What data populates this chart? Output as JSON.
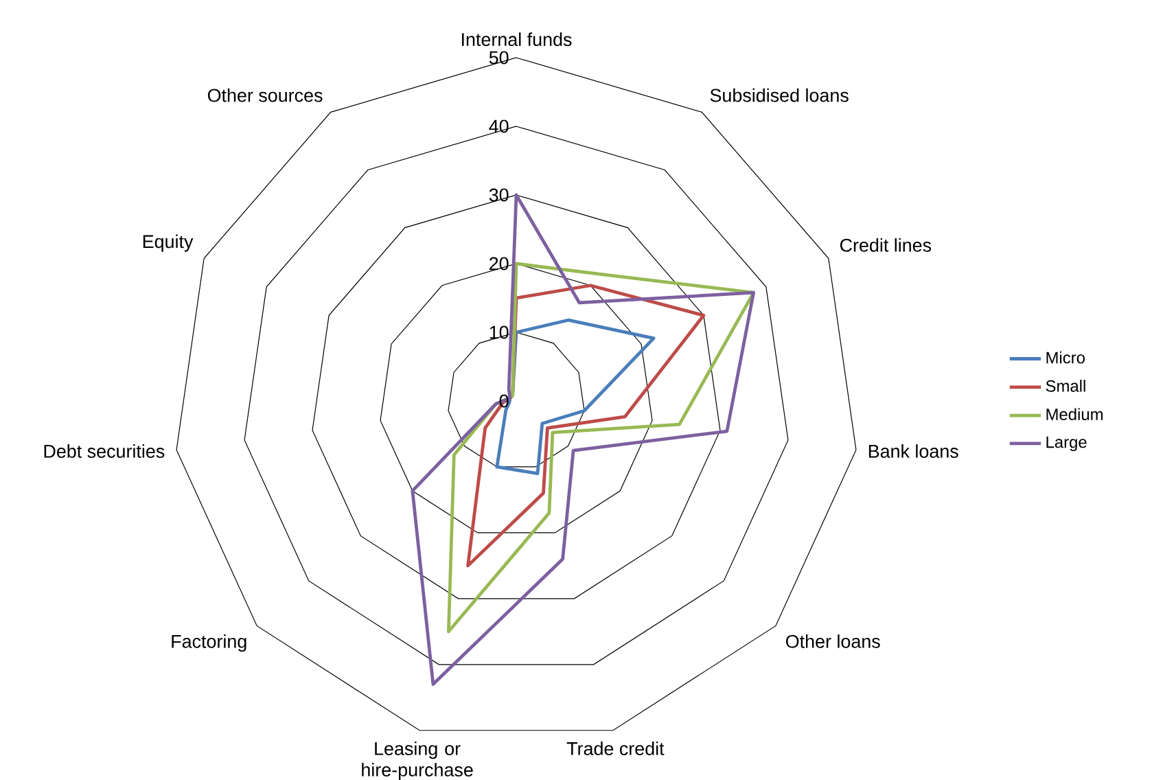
{
  "chart_data": {
    "type": "radar",
    "categories": [
      "Internal funds",
      "Subsidised loans",
      "Credit lines",
      "Bank loans",
      "Other loans",
      "Trade credit",
      "Leasing or hire-purchase",
      "Factoring",
      "Debt securities",
      "Equity",
      "Other sources"
    ],
    "series": [
      {
        "name": "Micro",
        "color": "#4a7ebb",
        "values": [
          10,
          14,
          22,
          10,
          5,
          11,
          10,
          2,
          1,
          1,
          1
        ]
      },
      {
        "name": "Small",
        "color": "#be4b48",
        "values": [
          15,
          20,
          30,
          16,
          6,
          14,
          25,
          6,
          2,
          1,
          1
        ]
      },
      {
        "name": "Medium",
        "color": "#98b954",
        "values": [
          20,
          22,
          38,
          24,
          7,
          17,
          35,
          12,
          3,
          1,
          1
        ]
      },
      {
        "name": "Large",
        "color": "#7d60a0",
        "values": [
          30,
          17,
          38,
          31,
          11,
          24,
          43,
          20,
          3,
          1,
          2
        ]
      }
    ],
    "ylim": [
      0,
      50
    ],
    "yticks": [
      0,
      10,
      20,
      30,
      40,
      50
    ],
    "grid": true,
    "legend": "right",
    "line_style": "solid"
  }
}
